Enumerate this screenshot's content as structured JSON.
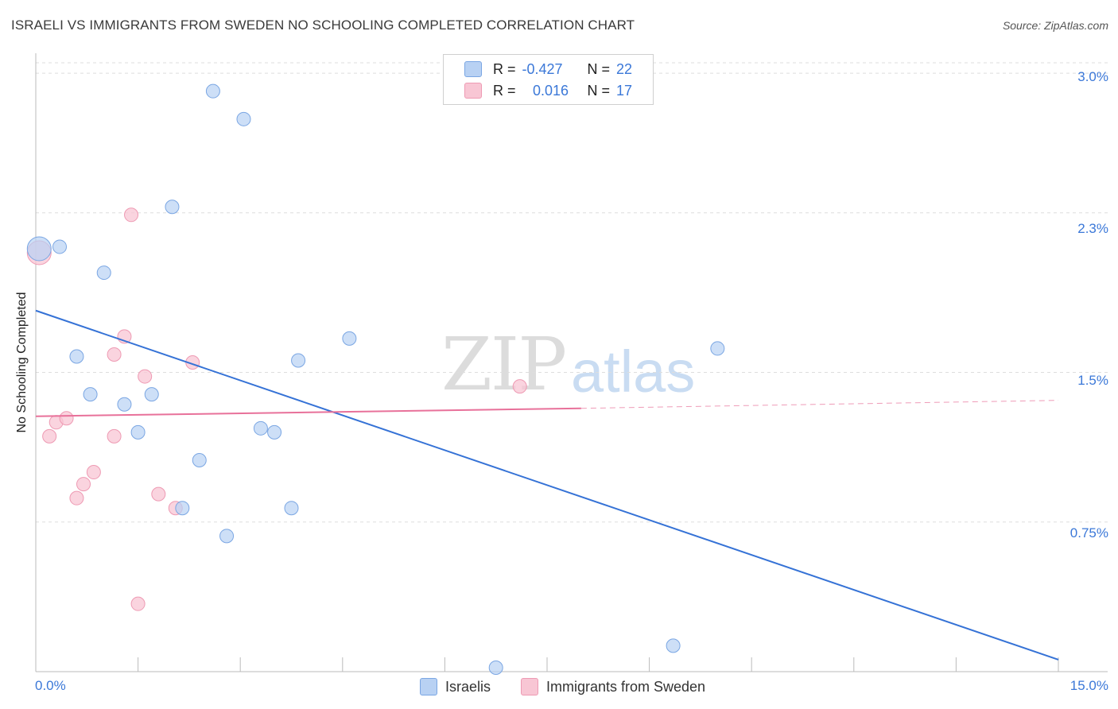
{
  "title": "ISRAELI VS IMMIGRANTS FROM SWEDEN NO SCHOOLING COMPLETED CORRELATION CHART",
  "source": "Source: ZipAtlas.com",
  "watermark": {
    "zip": "ZIP",
    "atlas": "atlas"
  },
  "legend": {
    "r_label": "R =",
    "n_label": "N =",
    "series1": {
      "r": "-0.427",
      "n": "22"
    },
    "series2": {
      "r": "0.016",
      "n": "17"
    }
  },
  "bottom_legend": {
    "series1": "Israelis",
    "series2": "Immigrants from Sweden"
  },
  "colors": {
    "blue_fill": "#b8d1f3",
    "blue_stroke": "#7aa6e3",
    "blue_line": "#3572d6",
    "pink_fill": "#f8c6d4",
    "pink_stroke": "#ee9ab3",
    "pink_line": "#e8719a",
    "axis_text": "#3b78d8",
    "grid": "#dddddd"
  },
  "chart_data": {
    "type": "scatter",
    "title": "ISRAELI VS IMMIGRANTS FROM SWEDEN NO SCHOOLING COMPLETED CORRELATION CHART",
    "xlabel": "",
    "ylabel": "No Schooling Completed",
    "xlim": [
      0,
      15
    ],
    "ylim": [
      0,
      3.1
    ],
    "x_tick_labels": [
      "0.0%",
      "15.0%"
    ],
    "y_ticks": [
      {
        "value": 0.75,
        "label": "0.75%"
      },
      {
        "value": 1.5,
        "label": "1.5%"
      },
      {
        "value": 2.3,
        "label": "2.3%"
      },
      {
        "value": 3.0,
        "label": "3.0%"
      }
    ],
    "series": [
      {
        "name": "Israelis",
        "points": [
          [
            0.05,
            2.12
          ],
          [
            0.35,
            2.13
          ],
          [
            1.0,
            2.0
          ],
          [
            0.6,
            1.58
          ],
          [
            0.8,
            1.39
          ],
          [
            1.3,
            1.34
          ],
          [
            1.7,
            1.39
          ],
          [
            1.5,
            1.2
          ],
          [
            2.0,
            2.33
          ],
          [
            2.6,
            2.91
          ],
          [
            3.05,
            2.77
          ],
          [
            2.4,
            1.06
          ],
          [
            2.15,
            0.82
          ],
          [
            2.8,
            0.68
          ],
          [
            3.3,
            1.22
          ],
          [
            3.5,
            1.2
          ],
          [
            3.85,
            1.56
          ],
          [
            4.6,
            1.67
          ],
          [
            3.75,
            0.82
          ],
          [
            10.0,
            1.62
          ],
          [
            6.75,
            0.02
          ],
          [
            9.35,
            0.13
          ]
        ],
        "trend": {
          "x": [
            0,
            15
          ],
          "y": [
            1.81,
            0.06
          ]
        }
      },
      {
        "name": "Immigrants from Sweden",
        "points": [
          [
            0.05,
            2.1
          ],
          [
            0.2,
            1.18
          ],
          [
            0.3,
            1.25
          ],
          [
            0.45,
            1.27
          ],
          [
            0.6,
            0.87
          ],
          [
            0.7,
            0.94
          ],
          [
            0.85,
            1.0
          ],
          [
            1.15,
            1.59
          ],
          [
            1.15,
            1.18
          ],
          [
            1.3,
            1.68
          ],
          [
            1.4,
            2.29
          ],
          [
            1.5,
            0.34
          ],
          [
            1.6,
            1.48
          ],
          [
            1.8,
            0.89
          ],
          [
            2.05,
            0.82
          ],
          [
            2.3,
            1.55
          ],
          [
            7.1,
            1.43
          ]
        ],
        "trend": {
          "x": [
            0,
            8.0
          ],
          "y": [
            1.28,
            1.32
          ]
        },
        "trend_dashed": {
          "x": [
            8.0,
            15
          ],
          "y": [
            1.32,
            1.36
          ]
        }
      }
    ]
  }
}
